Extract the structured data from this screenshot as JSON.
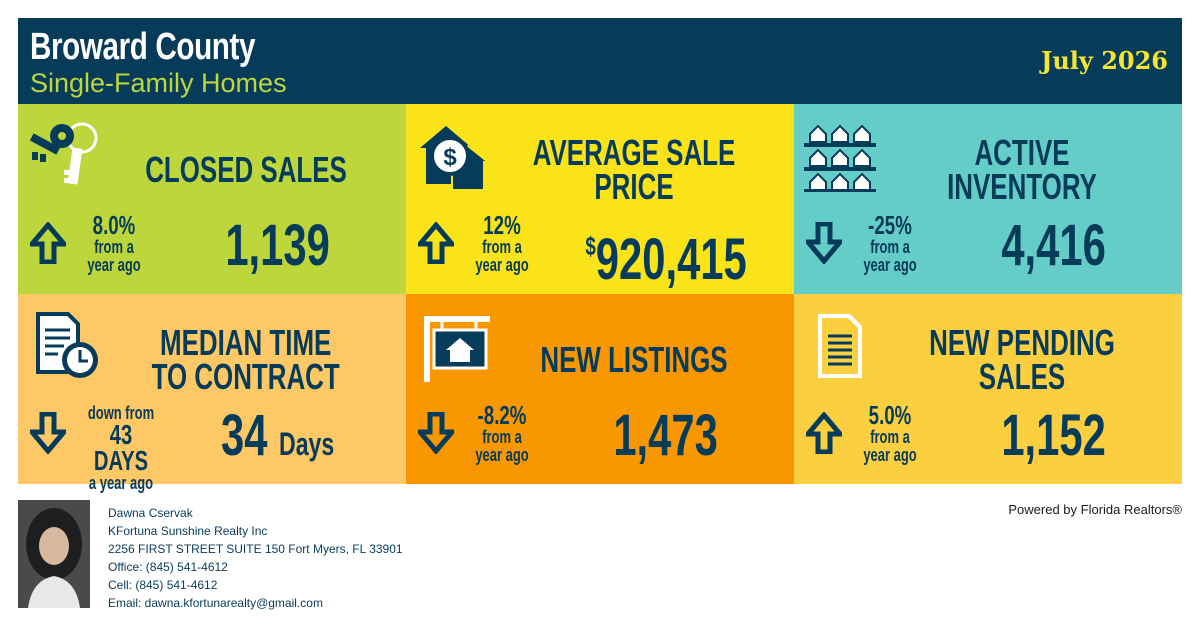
{
  "header": {
    "title": "Broward County",
    "subtitle": "Single-Family Homes",
    "date": "July 2026"
  },
  "colors": {
    "navy": "#073b5a",
    "green": "#bcd63c",
    "yellow": "#fbe319",
    "teal": "#65cdc8",
    "light_orange": "#fdc865",
    "orange": "#f99700",
    "gold": "#fbcf40"
  },
  "tiles": [
    {
      "label": "CLOSED SALES",
      "icon": "keys-icon",
      "direction": "up",
      "change": "8.0%",
      "change_text": "from a\nyear ago",
      "value": "1,139"
    },
    {
      "label": "AVERAGE SALE PRICE",
      "icon": "house-dollar-icon",
      "direction": "up",
      "change": "12%",
      "change_text": "from a\nyear ago",
      "currency": "$",
      "value": "920,415"
    },
    {
      "label": "ACTIVE INVENTORY",
      "icon": "houses-grid-icon",
      "direction": "down",
      "change": "-25%",
      "change_text": "from a\nyear ago",
      "value": "4,416"
    },
    {
      "label": "MEDIAN TIME\nTO CONTRACT",
      "icon": "document-clock-icon",
      "direction": "down",
      "change_pre": "down from",
      "change_mid": "43 DAYS",
      "change_post": "a year ago",
      "value": "34",
      "unit": "Days"
    },
    {
      "label": "NEW LISTINGS",
      "icon": "for-sale-sign-icon",
      "direction": "down",
      "change": "-8.2%",
      "change_text": "from a\nyear ago",
      "value": "1,473"
    },
    {
      "label": "NEW PENDING SALES",
      "icon": "document-icon",
      "direction": "up",
      "change": "5.0%",
      "change_text": "from a\nyear ago",
      "value": "1,152"
    }
  ],
  "agent": {
    "name": "Dawna Cservak",
    "company": "KFortuna Sunshine Realty Inc",
    "address": "2256 FIRST STREET SUITE 150 Fort Myers, FL 33901",
    "office": "Office: (845) 541-4612",
    "cell": "Cell: (845) 541-4612",
    "email": "Email: dawna.kfortunarealty@gmail.com"
  },
  "powered_by": "Powered by Florida Realtors®"
}
